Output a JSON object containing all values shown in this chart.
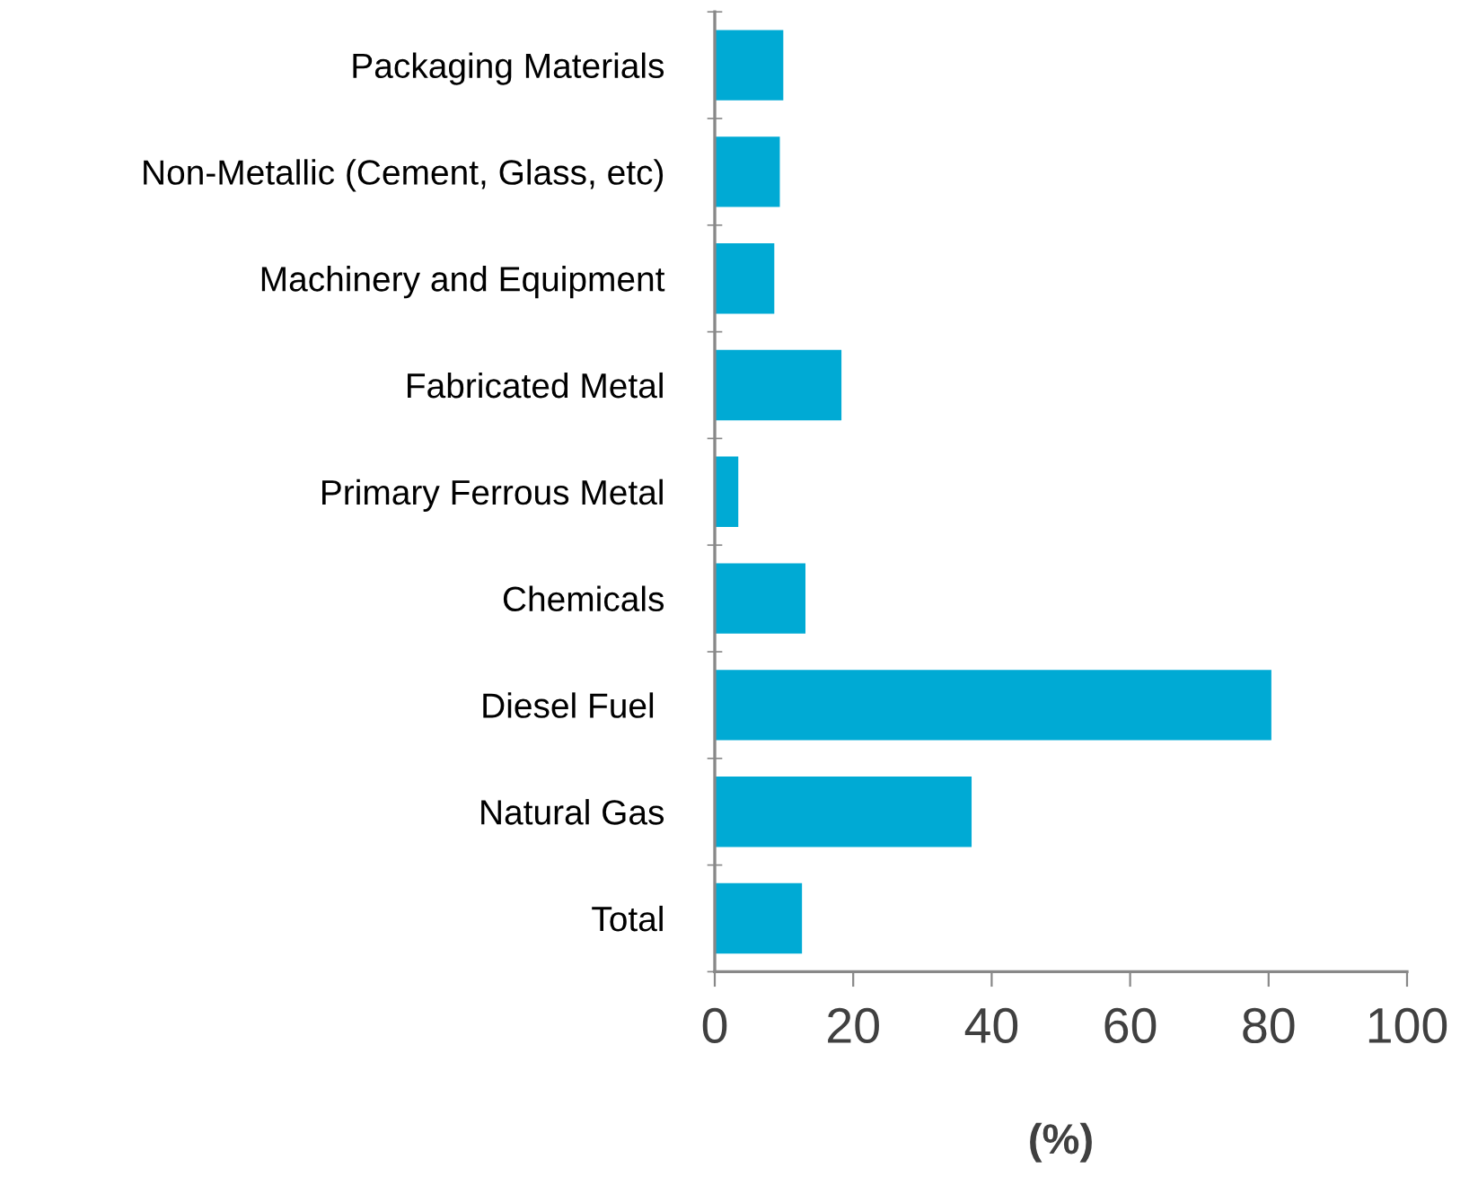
{
  "chart_data": {
    "type": "bar",
    "orientation": "horizontal",
    "categories": [
      "Packaging Materials",
      "Non-Metallic (Cement, Glass, etc)",
      "Machinery and Equipment",
      "Fabricated Metal",
      "Primary Ferrous Metal",
      "Chemicals",
      "Diesel Fuel ",
      "Natural Gas",
      "Total"
    ],
    "values": [
      9.9,
      9.4,
      8.6,
      18.3,
      3.4,
      13.1,
      80.4,
      37.1,
      12.6
    ],
    "color": "#00aad4",
    "xlabel": "(%)",
    "xlim": [
      0,
      100
    ],
    "xticks": [
      0,
      20,
      40,
      60,
      80,
      100
    ],
    "grid": false,
    "legend": false
  }
}
